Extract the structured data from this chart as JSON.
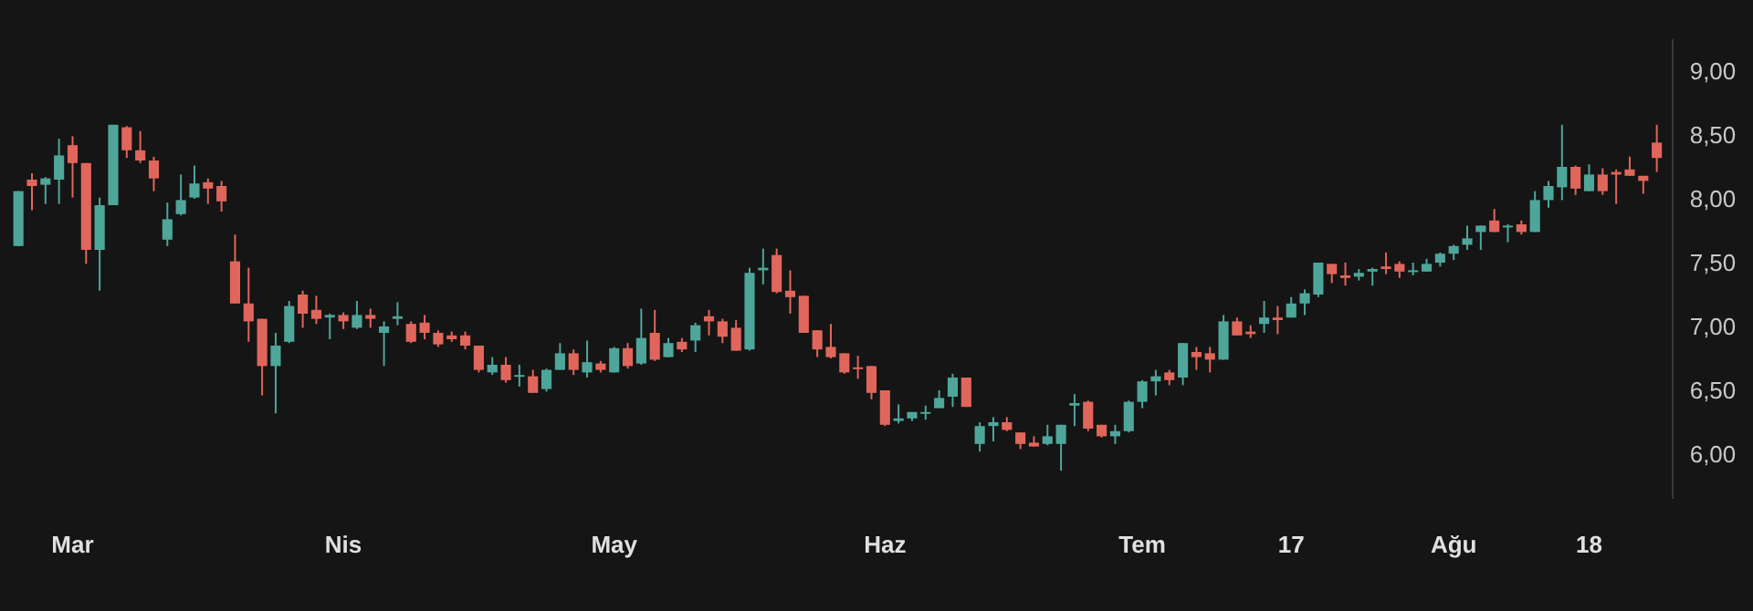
{
  "chart_data": {
    "type": "candlestick",
    "categories": [
      null,
      null,
      null,
      null,
      "Mar",
      null,
      null,
      null,
      null,
      null,
      null,
      null,
      null,
      null,
      null,
      null,
      null,
      null,
      null,
      null,
      null,
      null,
      null,
      null,
      "Nis",
      null,
      null,
      null,
      null,
      null,
      null,
      null,
      null,
      null,
      null,
      null,
      null,
      null,
      null,
      null,
      null,
      null,
      null,
      null,
      "May",
      null,
      null,
      null,
      null,
      null,
      null,
      null,
      null,
      null,
      null,
      null,
      null,
      null,
      null,
      null,
      null,
      null,
      null,
      null,
      "Haz",
      null,
      null,
      null,
      null,
      null,
      null,
      null,
      null,
      null,
      null,
      null,
      null,
      null,
      null,
      null,
      null,
      null,
      null,
      "Tem",
      null,
      null,
      null,
      null,
      null,
      null,
      null,
      null,
      null,
      null,
      "17",
      null,
      null,
      null,
      null,
      null,
      null,
      null,
      null,
      null,
      null,
      null,
      "Ağu",
      null,
      null,
      null,
      null,
      null,
      null,
      null,
      null,
      null,
      "18",
      null,
      null,
      null,
      null,
      null
    ],
    "ohlc": [
      [
        7.63,
        8.06,
        7.63,
        8.06
      ],
      [
        8.15,
        8.2,
        7.91,
        8.1
      ],
      [
        8.11,
        8.17,
        7.96,
        8.16
      ],
      [
        8.15,
        8.47,
        7.96,
        8.34
      ],
      [
        8.42,
        8.49,
        8.01,
        8.28
      ],
      [
        8.28,
        8.28,
        7.49,
        7.6
      ],
      [
        7.6,
        8.01,
        7.28,
        7.95
      ],
      [
        7.95,
        8.58,
        7.95,
        8.58
      ],
      [
        8.56,
        8.57,
        8.32,
        8.38
      ],
      [
        8.38,
        8.53,
        8.28,
        8.3
      ],
      [
        8.3,
        8.33,
        8.06,
        8.16
      ],
      [
        7.68,
        7.97,
        7.63,
        7.84
      ],
      [
        7.88,
        8.19,
        7.87,
        7.99
      ],
      [
        8.01,
        8.26,
        8.0,
        8.12
      ],
      [
        8.13,
        8.16,
        7.96,
        8.08
      ],
      [
        8.1,
        8.14,
        7.9,
        7.98
      ],
      [
        7.51,
        7.72,
        7.18,
        7.18
      ],
      [
        7.18,
        7.46,
        6.88,
        7.04
      ],
      [
        7.06,
        7.06,
        6.46,
        6.69
      ],
      [
        6.69,
        6.95,
        6.32,
        6.85
      ],
      [
        6.88,
        7.2,
        6.87,
        7.16
      ],
      [
        7.25,
        7.28,
        6.99,
        7.1
      ],
      [
        7.13,
        7.24,
        7.02,
        7.06
      ],
      [
        7.07,
        7.1,
        6.9,
        7.09
      ],
      [
        7.09,
        7.11,
        6.98,
        7.04
      ],
      [
        6.99,
        7.2,
        6.98,
        7.09
      ],
      [
        7.09,
        7.14,
        6.99,
        7.06
      ],
      [
        6.95,
        7.04,
        6.69,
        7.0
      ],
      [
        7.06,
        7.19,
        7.01,
        7.08
      ],
      [
        7.02,
        7.04,
        6.87,
        6.88
      ],
      [
        7.03,
        7.09,
        6.9,
        6.95
      ],
      [
        6.95,
        6.97,
        6.84,
        6.86
      ],
      [
        6.93,
        6.96,
        6.88,
        6.9
      ],
      [
        6.93,
        6.96,
        6.82,
        6.85
      ],
      [
        6.85,
        6.85,
        6.64,
        6.66
      ],
      [
        6.64,
        6.76,
        6.62,
        6.7
      ],
      [
        6.7,
        6.76,
        6.56,
        6.58
      ],
      [
        6.61,
        6.7,
        6.53,
        6.62
      ],
      [
        6.61,
        6.66,
        6.48,
        6.48
      ],
      [
        6.51,
        6.67,
        6.49,
        6.66
      ],
      [
        6.66,
        6.87,
        6.66,
        6.79
      ],
      [
        6.79,
        6.82,
        6.62,
        6.66
      ],
      [
        6.64,
        6.89,
        6.6,
        6.72
      ],
      [
        6.71,
        6.73,
        6.64,
        6.66
      ],
      [
        6.64,
        6.84,
        6.64,
        6.83
      ],
      [
        6.83,
        6.87,
        6.67,
        6.69
      ],
      [
        6.71,
        7.14,
        6.7,
        6.91
      ],
      [
        6.95,
        7.13,
        6.73,
        6.74
      ],
      [
        6.76,
        6.91,
        6.76,
        6.87
      ],
      [
        6.88,
        6.91,
        6.8,
        6.82
      ],
      [
        6.89,
        7.03,
        6.8,
        7.01
      ],
      [
        7.08,
        7.13,
        6.93,
        7.04
      ],
      [
        7.04,
        7.06,
        6.87,
        6.92
      ],
      [
        6.99,
        7.05,
        6.81,
        6.81
      ],
      [
        6.82,
        7.46,
        6.81,
        7.42
      ],
      [
        7.44,
        7.61,
        7.33,
        7.46
      ],
      [
        7.56,
        7.61,
        7.26,
        7.27
      ],
      [
        7.28,
        7.44,
        7.1,
        7.23
      ],
      [
        7.24,
        7.24,
        6.95,
        6.95
      ],
      [
        6.97,
        6.97,
        6.76,
        6.82
      ],
      [
        6.84,
        7.02,
        6.75,
        6.76
      ],
      [
        6.79,
        6.79,
        6.63,
        6.64
      ],
      [
        6.68,
        6.77,
        6.59,
        6.67
      ],
      [
        6.69,
        6.69,
        6.43,
        6.48
      ],
      [
        6.5,
        6.5,
        6.22,
        6.23
      ],
      [
        6.26,
        6.39,
        6.24,
        6.28
      ],
      [
        6.28,
        6.33,
        6.26,
        6.33
      ],
      [
        6.32,
        6.38,
        6.27,
        6.33
      ],
      [
        6.36,
        6.5,
        6.36,
        6.44
      ],
      [
        6.45,
        6.63,
        6.37,
        6.6
      ],
      [
        6.6,
        6.6,
        6.37,
        6.37
      ],
      [
        6.08,
        6.25,
        6.02,
        6.22
      ],
      [
        6.22,
        6.29,
        6.1,
        6.25
      ],
      [
        6.25,
        6.29,
        6.18,
        6.19
      ],
      [
        6.17,
        6.17,
        6.04,
        6.08
      ],
      [
        6.09,
        6.14,
        6.06,
        6.06
      ],
      [
        6.08,
        6.23,
        6.07,
        6.14
      ],
      [
        6.08,
        6.23,
        5.87,
        6.23
      ],
      [
        6.38,
        6.47,
        6.22,
        6.4
      ],
      [
        6.41,
        6.42,
        6.18,
        6.2
      ],
      [
        6.23,
        6.23,
        6.13,
        6.14
      ],
      [
        6.14,
        6.23,
        6.08,
        6.18
      ],
      [
        6.18,
        6.42,
        6.17,
        6.41
      ],
      [
        6.41,
        6.58,
        6.36,
        6.57
      ],
      [
        6.57,
        6.66,
        6.46,
        6.61
      ],
      [
        6.64,
        6.66,
        6.54,
        6.58
      ],
      [
        6.6,
        6.87,
        6.54,
        6.87
      ],
      [
        6.8,
        6.84,
        6.66,
        6.76
      ],
      [
        6.79,
        6.84,
        6.64,
        6.74
      ],
      [
        6.74,
        7.09,
        6.74,
        7.04
      ],
      [
        7.04,
        7.07,
        6.93,
        6.93
      ],
      [
        6.96,
        7.01,
        6.91,
        6.94
      ],
      [
        7.02,
        7.2,
        6.95,
        7.07
      ],
      [
        7.07,
        7.16,
        6.94,
        7.05
      ],
      [
        7.07,
        7.23,
        7.07,
        7.18
      ],
      [
        7.18,
        7.29,
        7.09,
        7.26
      ],
      [
        7.25,
        7.5,
        7.23,
        7.5
      ],
      [
        7.49,
        7.49,
        7.34,
        7.41
      ],
      [
        7.4,
        7.5,
        7.32,
        7.38
      ],
      [
        7.39,
        7.45,
        7.36,
        7.42
      ],
      [
        7.43,
        7.46,
        7.32,
        7.45
      ],
      [
        7.47,
        7.58,
        7.41,
        7.45
      ],
      [
        7.49,
        7.51,
        7.38,
        7.43
      ],
      [
        7.43,
        7.5,
        7.4,
        7.44
      ],
      [
        7.43,
        7.53,
        7.43,
        7.49
      ],
      [
        7.5,
        7.58,
        7.47,
        7.57
      ],
      [
        7.57,
        7.64,
        7.52,
        7.63
      ],
      [
        7.64,
        7.79,
        7.6,
        7.69
      ],
      [
        7.74,
        7.79,
        7.6,
        7.79
      ],
      [
        7.83,
        7.92,
        7.74,
        7.74
      ],
      [
        7.78,
        7.8,
        7.66,
        7.79
      ],
      [
        7.8,
        7.83,
        7.72,
        7.74
      ],
      [
        7.74,
        8.06,
        7.74,
        7.99
      ],
      [
        7.99,
        8.14,
        7.93,
        8.1
      ],
      [
        8.09,
        8.58,
        7.99,
        8.25
      ],
      [
        8.25,
        8.26,
        8.03,
        8.08
      ],
      [
        8.06,
        8.27,
        8.06,
        8.19
      ],
      [
        8.19,
        8.24,
        8.03,
        8.06
      ],
      [
        8.21,
        8.23,
        7.96,
        8.19
      ],
      [
        8.23,
        8.33,
        8.18,
        8.18
      ],
      [
        8.18,
        8.18,
        8.04,
        8.14
      ],
      [
        8.44,
        8.58,
        8.21,
        8.32
      ]
    ],
    "ylim": [
      5.65,
      9.25
    ],
    "yticks": [
      {
        "value": 6,
        "label": "6,00"
      },
      {
        "value": 6.5,
        "label": "6,50"
      },
      {
        "value": 7,
        "label": "7,00"
      },
      {
        "value": 7.5,
        "label": "7,50"
      },
      {
        "value": 8,
        "label": "8,00"
      },
      {
        "value": 8.5,
        "label": "8,50"
      },
      {
        "value": 9,
        "label": "9,00"
      }
    ]
  }
}
